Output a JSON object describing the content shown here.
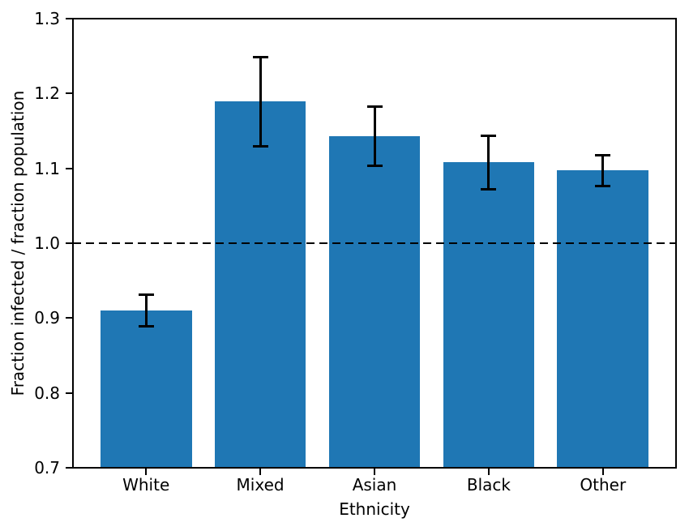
{
  "figure": {
    "background": "#ffffff",
    "spine_color": "#000000",
    "tick_color": "#000000"
  },
  "chart_data": {
    "type": "bar",
    "title": "",
    "xlabel": "Ethnicity",
    "ylabel": "Fraction infected / fraction population",
    "categories": [
      "White",
      "Mixed",
      "Asian",
      "Black",
      "Other"
    ],
    "values": [
      0.91,
      1.189,
      1.143,
      1.108,
      1.097
    ],
    "errors": [
      0.021,
      0.06,
      0.04,
      0.036,
      0.021
    ],
    "bar_color": "#1f77b4",
    "error_color": "#000000",
    "ylim": [
      0.7,
      1.3
    ],
    "yticks": [
      0.7,
      0.8,
      0.9,
      1.0,
      1.1,
      1.2,
      1.3
    ],
    "ytick_labels": [
      "0.7",
      "0.8",
      "0.9",
      "1.0",
      "1.1",
      "1.2",
      "1.3"
    ],
    "reference_line": {
      "value": 1.0,
      "style": "dashed",
      "color": "#000000"
    },
    "grid": false,
    "legend": null,
    "bar_width_fraction": 0.8
  }
}
